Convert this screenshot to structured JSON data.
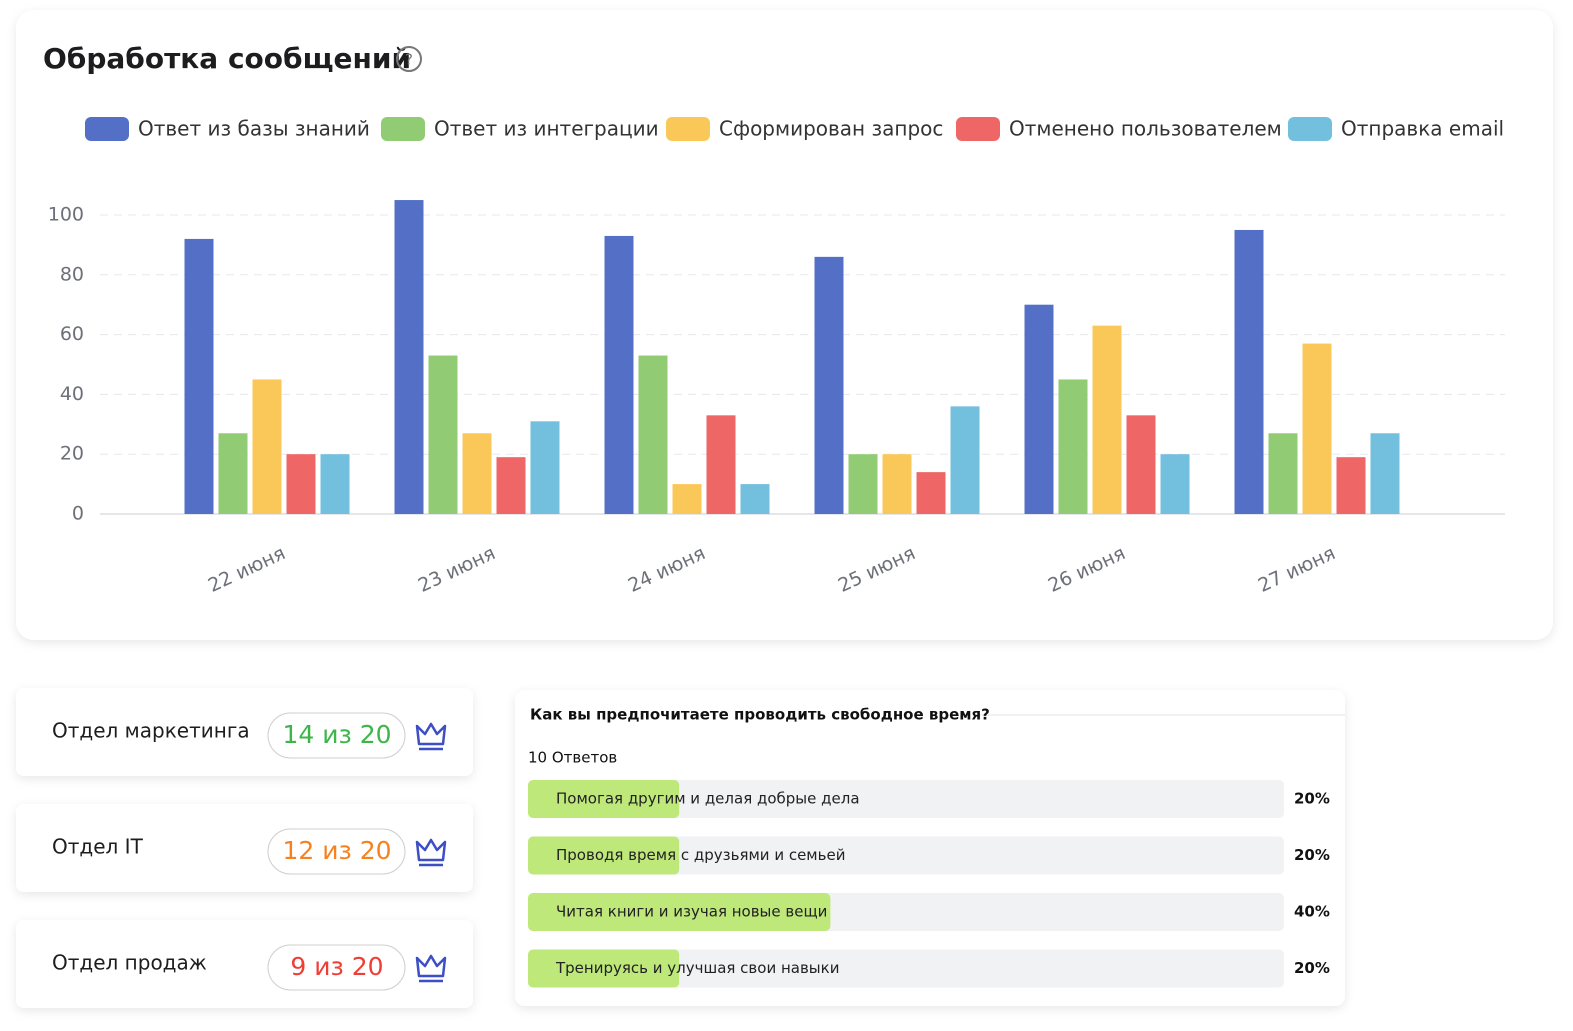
{
  "chart_data": {
    "type": "bar",
    "title": "Обработка сообщений",
    "categories": [
      "22 июня",
      "23 июня",
      "24 июня",
      "25 июня",
      "26 июня",
      "27 июня"
    ],
    "series": [
      {
        "name": "Ответ из базы знаний",
        "color": "#5470c6",
        "values": [
          92,
          105,
          93,
          86,
          70,
          95
        ]
      },
      {
        "name": "Ответ из интеграции",
        "color": "#91cc75",
        "values": [
          27,
          53,
          53,
          20,
          45,
          27
        ]
      },
      {
        "name": "Сформирован запрос",
        "color": "#fac858",
        "values": [
          45,
          27,
          10,
          20,
          63,
          57
        ]
      },
      {
        "name": "Отменено пользователем",
        "color": "#ee6666",
        "values": [
          20,
          19,
          33,
          14,
          33,
          19
        ]
      },
      {
        "name": "Отправка email",
        "color": "#73c0de",
        "values": [
          20,
          31,
          10,
          36,
          20,
          27
        ]
      }
    ],
    "ylim": [
      0,
      110
    ],
    "yticks": [
      0,
      20,
      40,
      60,
      80,
      100
    ],
    "grid": true,
    "legend": "top"
  },
  "departments": [
    {
      "name": "Отдел маркетинга",
      "score": "14 из 20",
      "color": "#3db54a"
    },
    {
      "name": "Отдел IT",
      "score": "12 из 20",
      "color": "#f5821f"
    },
    {
      "name": "Отдел продаж",
      "score": "9 из 20",
      "color": "#ef3e36"
    }
  ],
  "poll": {
    "question": "Как вы предпочитаете проводить свободное время?",
    "answers": "10 Ответов",
    "options": [
      "Помогая другим и делая добрые дела",
      "Проводя время с друзьями и семьей",
      "Читая книги и изучая новые вещи",
      "Тренируясь и улучшая свои навыки"
    ],
    "values": [
      20,
      20,
      40,
      20
    ],
    "value_labels": [
      "20%",
      "20%",
      "40%",
      "20%"
    ],
    "xlim": [
      0,
      100
    ],
    "color": "#bfe87a"
  }
}
